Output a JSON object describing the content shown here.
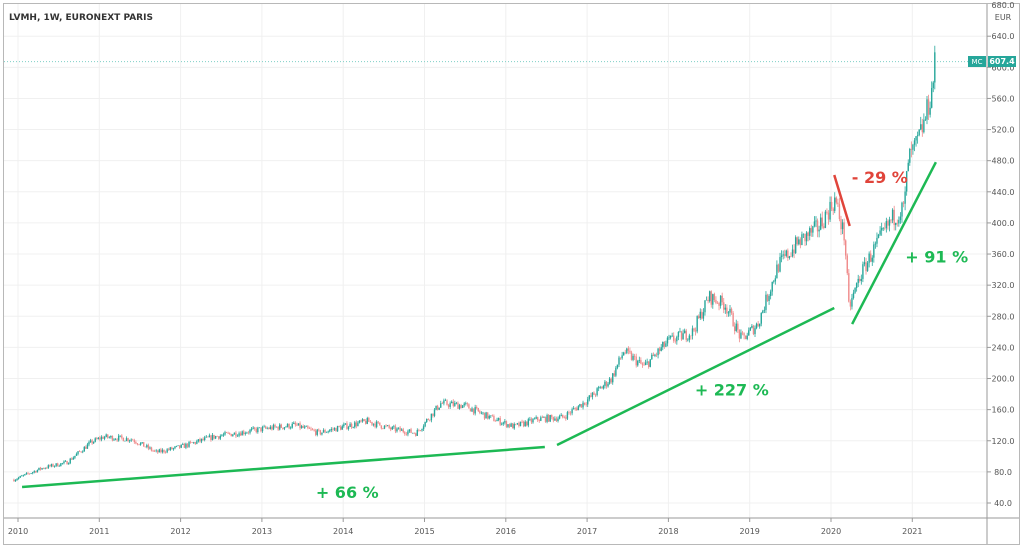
{
  "header": {
    "title": "LVMH, 1W, EURONEXT PARIS"
  },
  "price_axis": {
    "currency": "EUR",
    "top_partial_label": "680.0"
  },
  "last_price": {
    "symbol": "MC",
    "value": "607.4"
  },
  "colors": {
    "up": "#26a69a",
    "down": "#ef8a8a",
    "annotation_green": "#1db954",
    "annotation_red": "#e0443a",
    "badge": "#26a69a"
  },
  "chart_data": {
    "type": "candlestick",
    "title": "LVMH, 1W, EURONEXT PARIS",
    "x_ticks": [
      "2010",
      "2011",
      "2012",
      "2013",
      "2014",
      "2015",
      "2016",
      "2017",
      "2018",
      "2019",
      "2020",
      "2021"
    ],
    "y_ticks": [
      "40.0",
      "80.0",
      "120.0",
      "160.0",
      "200.0",
      "240.0",
      "280.0",
      "320.0",
      "360.0",
      "400.0",
      "440.0",
      "480.0",
      "520.0",
      "560.0",
      "600.0",
      "640.0"
    ],
    "ylim": [
      20,
      680
    ],
    "xlim": [
      2009.95,
      2022.05
    ],
    "grid": true,
    "approx_closes": [
      [
        2009.95,
        70
      ],
      [
        2010.3,
        85
      ],
      [
        2010.6,
        92
      ],
      [
        2010.9,
        118
      ],
      [
        2011.05,
        125
      ],
      [
        2011.4,
        122
      ],
      [
        2011.7,
        105
      ],
      [
        2012.0,
        112
      ],
      [
        2012.4,
        125
      ],
      [
        2012.7,
        130
      ],
      [
        2013.0,
        135
      ],
      [
        2013.4,
        140
      ],
      [
        2013.7,
        130
      ],
      [
        2014.0,
        138
      ],
      [
        2014.3,
        145
      ],
      [
        2014.6,
        135
      ],
      [
        2014.9,
        130
      ],
      [
        2015.2,
        168
      ],
      [
        2015.5,
        165
      ],
      [
        2015.8,
        150
      ],
      [
        2016.1,
        138
      ],
      [
        2016.4,
        148
      ],
      [
        2016.7,
        150
      ],
      [
        2017.0,
        172
      ],
      [
        2017.3,
        200
      ],
      [
        2017.45,
        235
      ],
      [
        2017.7,
        215
      ],
      [
        2018.0,
        248
      ],
      [
        2018.3,
        260
      ],
      [
        2018.5,
        305
      ],
      [
        2018.7,
        295
      ],
      [
        2018.9,
        250
      ],
      [
        2019.1,
        270
      ],
      [
        2019.35,
        345
      ],
      [
        2019.6,
        375
      ],
      [
        2019.85,
        395
      ],
      [
        2020.05,
        430
      ],
      [
        2020.17,
        380
      ],
      [
        2020.22,
        290
      ],
      [
        2020.35,
        330
      ],
      [
        2020.55,
        370
      ],
      [
        2020.75,
        405
      ],
      [
        2020.9,
        420
      ],
      [
        2020.95,
        480
      ],
      [
        2021.05,
        500
      ],
      [
        2021.15,
        530
      ],
      [
        2021.24,
        570
      ],
      [
        2021.28,
        607.4
      ]
    ],
    "last_value": 607.4,
    "annotations": [
      {
        "label": "+ 66 %",
        "color": "green",
        "line": [
          [
            2010.05,
            60.6
          ],
          [
            2016.48,
            112
          ]
        ],
        "text_at": [
          2014.05,
          54
        ]
      },
      {
        "label": "+ 227 %",
        "color": "green",
        "line": [
          [
            2016.63,
            114.5
          ],
          [
            2020.04,
            290.6
          ]
        ],
        "text_at": [
          2018.78,
          186
        ]
      },
      {
        "label": "- 29 %",
        "color": "red",
        "line": [
          [
            2020.04,
            461.6
          ],
          [
            2020.23,
            396
          ]
        ],
        "text_at": [
          2020.6,
          459
        ]
      },
      {
        "label": "+ 91 %",
        "color": "green",
        "line": [
          [
            2020.26,
            270
          ],
          [
            2021.29,
            478
          ]
        ],
        "text_at": [
          2021.3,
          357
        ]
      }
    ]
  }
}
